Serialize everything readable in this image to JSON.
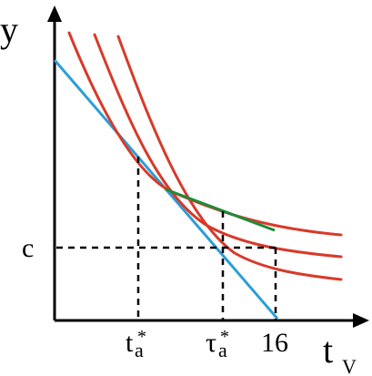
{
  "axes": {
    "y_label": "y",
    "x_label_main": "t",
    "x_label_sub": "V"
  },
  "labels": {
    "c": "c",
    "t_a_star_main": "t",
    "t_a_star_sub": "a",
    "t_a_star_sup": "*",
    "tau_a_star_main": "τ",
    "tau_a_star_sub": "a",
    "tau_a_star_sup": "*",
    "sixteen": "16"
  },
  "colors": {
    "axes": "#000000",
    "curves": "#d73a2a",
    "tangent_line": "#2b9ed8",
    "green_segment": "#1f8a3a",
    "guides": "#000000"
  }
}
